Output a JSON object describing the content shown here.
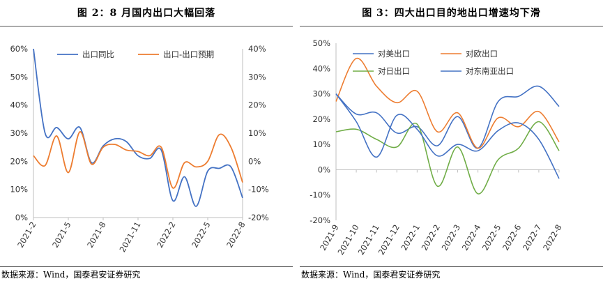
{
  "chart_data": [
    {
      "type": "line",
      "title": "图 2：8 月国内出口大幅回落",
      "source": "数据来源：Wind，国泰君安证券研究",
      "categories": [
        "2021-2",
        "2021-3",
        "2021-4",
        "2021-5",
        "2021-6",
        "2021-7",
        "2021-8",
        "2021-9",
        "2021-10",
        "2021-11",
        "2021-12",
        "2022-1",
        "2022-2",
        "2022-3",
        "2022-4",
        "2022-5",
        "2022-6",
        "2022-7",
        "2022-8"
      ],
      "x_tick_labels": [
        "2021-2",
        "2021-5",
        "2021-8",
        "2021-11",
        "2022-2",
        "2022-5",
        "2022-8"
      ],
      "y_left": {
        "ticks": [
          "0%",
          "10%",
          "20%",
          "30%",
          "40%",
          "50%",
          "60%"
        ],
        "min": 0,
        "max": 60
      },
      "y_right": {
        "ticks": [
          "-20%",
          "-10%",
          "0%",
          "10%",
          "20%",
          "30%",
          "40%"
        ],
        "min": -20,
        "max": 40
      },
      "legend_position": "top",
      "series": [
        {
          "name": "出口同比",
          "color": "#4472C4",
          "axis": "left",
          "values": [
            60.0,
            30.0,
            32.0,
            28.0,
            32.0,
            19.5,
            25.5,
            28.0,
            27.0,
            22.0,
            21.0,
            24.0,
            6.0,
            14.5,
            4.0,
            16.5,
            17.5,
            18.0,
            7.0
          ]
        },
        {
          "name": "出口-出口预期",
          "color": "#ED7D31",
          "axis": "right",
          "values": [
            2.0,
            -1.5,
            9.0,
            -4.0,
            10.5,
            -1.0,
            5.0,
            6.0,
            4.0,
            3.5,
            2.0,
            5.0,
            -9.5,
            -0.5,
            -2.0,
            0.0,
            9.5,
            5.0,
            -7.5
          ]
        }
      ]
    },
    {
      "type": "line",
      "title": "图 3：四大出口目的地出口增速均下滑",
      "source": "数据来源：Wind，国泰君安证券研究",
      "categories": [
        "2021-9",
        "2021-10",
        "2021-11",
        "2021-12",
        "2022-1",
        "2022-2",
        "2022-3",
        "2022-4",
        "2022-5",
        "2022-6",
        "2022-7",
        "2022-8"
      ],
      "y_axis": {
        "ticks": [
          "-20%",
          "-10%",
          "0%",
          "10%",
          "20%",
          "30%",
          "40%",
          "50%"
        ],
        "min": -20,
        "max": 50
      },
      "legend_position": "top",
      "series": [
        {
          "name": "对美出口",
          "color": "#4472C4",
          "values": [
            30.0,
            22.0,
            22.5,
            14.5,
            17.0,
            9.5,
            21.0,
            8.5,
            27.0,
            29.0,
            33.0,
            25.0
          ]
        },
        {
          "name": "对欧出口",
          "color": "#ED7D31",
          "values": [
            27.0,
            44.0,
            33.0,
            26.5,
            31.0,
            15.0,
            22.5,
            8.5,
            20.5,
            17.0,
            23.0,
            11.0
          ]
        },
        {
          "name": "对日出口",
          "color": "#70AD47",
          "values": [
            15.0,
            16.0,
            12.0,
            9.0,
            18.0,
            -6.5,
            9.0,
            -9.5,
            4.0,
            8.5,
            19.0,
            7.5
          ]
        },
        {
          "name": "对东南亚出口",
          "color": "#4472C4",
          "values": [
            30.0,
            19.0,
            5.0,
            21.5,
            16.0,
            5.5,
            10.0,
            7.5,
            15.5,
            18.5,
            12.0,
            -3.5
          ]
        }
      ]
    }
  ]
}
